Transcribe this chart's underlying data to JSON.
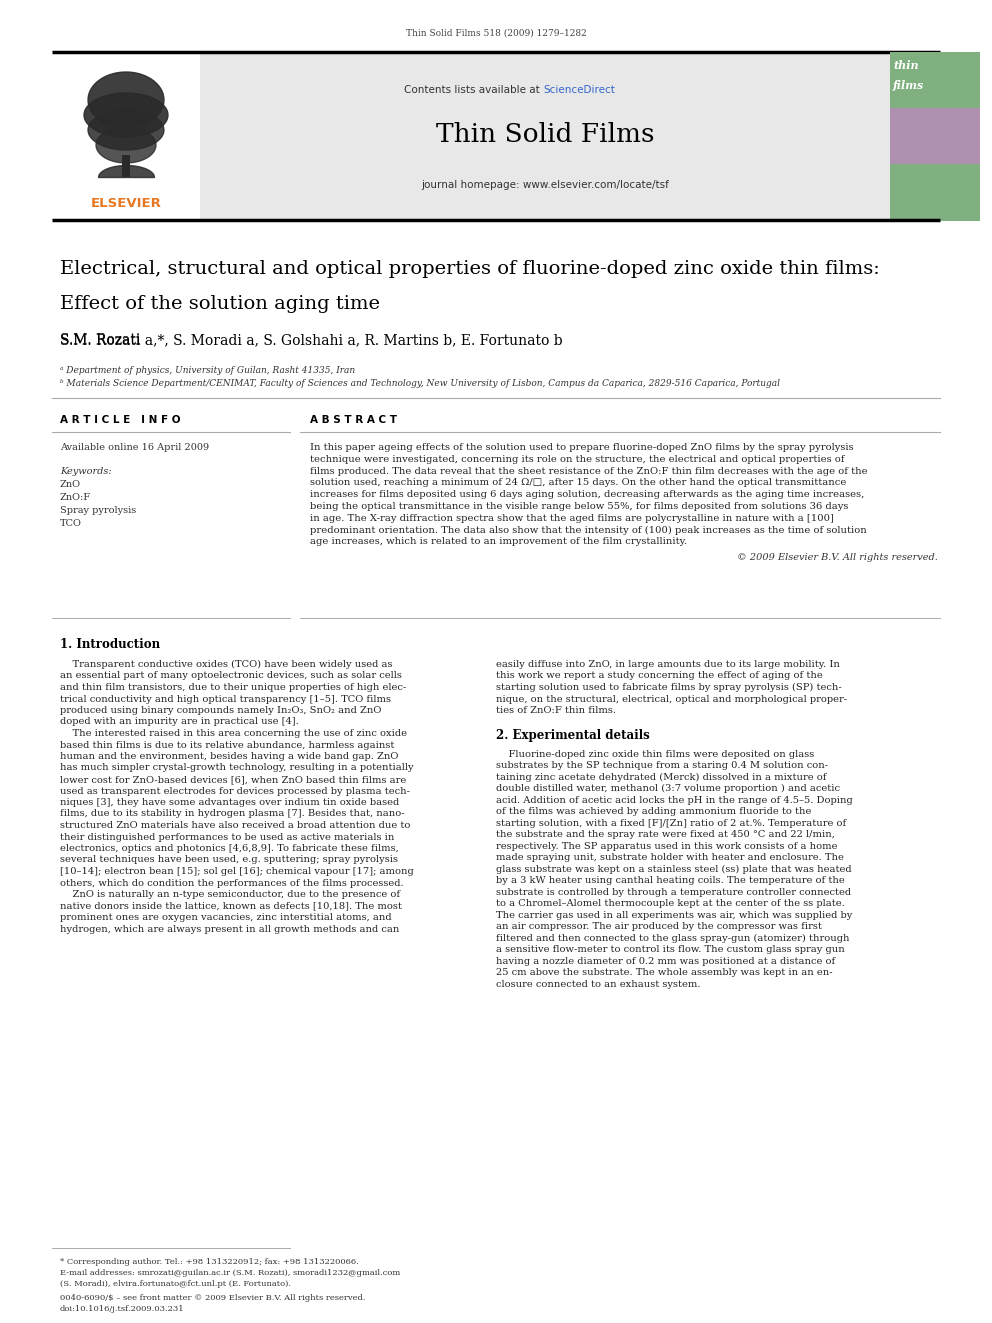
{
  "bg_color": "#ffffff",
  "page_width": 9.92,
  "page_height": 13.23,
  "dpi": 100,
  "top_journal_line": "Thin Solid Films 518 (2009) 1279–1282",
  "journal_name": "Thin Solid Films",
  "journal_url": "journal homepage: www.elsevier.com/locate/tsf",
  "contents_line1": "Contents lists available at ",
  "contents_link": "ScienceDirect",
  "link_color": "#3366cc",
  "article_title_line1": "Electrical, structural and optical properties of fluorine-doped zinc oxide thin films:",
  "article_title_line2": "Effect of the solution aging time",
  "authors_plain": "S.M. Rozati ",
  "authors_full": "S.M. Rozati a,*, S. Moradi a, S. Golshahi a, R. Martins b, E. Fortunato b",
  "affil_a": "ᵃ Department of physics, University of Guilan, Rasht 41335, Iran",
  "affil_b": "ᵇ Materials Science Department/CENIMAT, Faculty of Sciences and Technology, New University of Lisbon, Campus da Caparica, 2829-516 Caparica, Portugal",
  "article_info_header": "A R T I C L E   I N F O",
  "abstract_header": "A B S T R A C T",
  "available_online": "Available online 16 April 2009",
  "keywords_header": "Keywords:",
  "keywords": [
    "ZnO",
    "ZnO:F",
    "Spray pyrolysis",
    "TCO"
  ],
  "copyright": "© 2009 Elsevier B.V. All rights reserved.",
  "intro_header": "1. Introduction",
  "exp_header": "2. Experimental details",
  "footnote_star": "* Corresponding author. Tel.: +98 1313220912; fax: +98 1313220066.",
  "footnote_email": "E-mail addresses: smrozati@guilan.ac.ir (S.M. Rozati), smoradi1232@gmail.com",
  "footnote_email2": "(S. Moradi), elvira.fortunato@fct.unl.pt (E. Fortunato).",
  "footnote_issn": "0040-6090/$ – see front matter © 2009 Elsevier B.V. All rights reserved.",
  "footnote_doi": "doi:10.1016/j.tsf.2009.03.231",
  "elsevier_color": "#e87722",
  "header_gray": "#e8e8e8",
  "cover_green1": "#8cbf8c",
  "cover_purple": "#b09ab0",
  "cover_green2": "#8cbf8c",
  "rule_color": "#000000",
  "thin_rule_color": "#999999",
  "text_color": "#000000",
  "body_color": "#222222"
}
